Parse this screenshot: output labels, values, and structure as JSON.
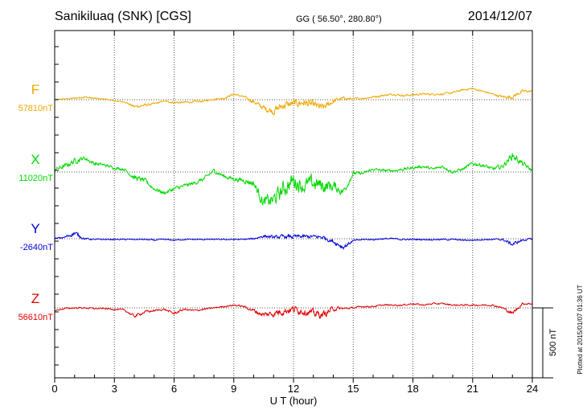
{
  "chart_data": {
    "type": "line",
    "title": "Sanikiluaq (SNK)  [CGS]",
    "coords": "GG ( 56.50°, 280.80°)",
    "date": "2014/12/07",
    "xlabel": "U T (hour)",
    "xlim": [
      0,
      24
    ],
    "xticks": [
      "0",
      "3",
      "6",
      "9",
      "12",
      "15",
      "18",
      "21",
      "24"
    ],
    "scale_label": "500 nT",
    "plotted_note": "Plotted at 2015/01/07 01:36 UT",
    "grid": true,
    "series": [
      {
        "name": "F",
        "baseline_label": "57810nT",
        "color": "#f0a800",
        "t": [
          0,
          0.5,
          1,
          1.5,
          2,
          2.5,
          3,
          3.5,
          4,
          4.5,
          5,
          5.5,
          6,
          6.5,
          7,
          7.5,
          8,
          8.5,
          9,
          9.5,
          10,
          10.5,
          11,
          11.5,
          12,
          12.5,
          13,
          13.5,
          14,
          14.5,
          15,
          15.5,
          16,
          16.5,
          17,
          17.5,
          18,
          18.5,
          19,
          19.5,
          20,
          20.5,
          21,
          21.5,
          22,
          22.5,
          23,
          23.5,
          24
        ],
        "v": [
          0,
          5,
          10,
          20,
          8,
          5,
          -10,
          -15,
          -50,
          -40,
          -30,
          -10,
          -20,
          -20,
          -15,
          -10,
          5,
          10,
          40,
          20,
          -15,
          -60,
          -80,
          -40,
          -30,
          -20,
          -40,
          -60,
          -10,
          10,
          5,
          10,
          20,
          30,
          40,
          30,
          35,
          40,
          40,
          40,
          50,
          70,
          80,
          60,
          40,
          20,
          20,
          60,
          60
        ],
        "noise": [
          5,
          5,
          10,
          10,
          10,
          5,
          5,
          5,
          15,
          15,
          10,
          5,
          15,
          10,
          10,
          10,
          10,
          10,
          10,
          10,
          20,
          30,
          40,
          45,
          45,
          40,
          45,
          40,
          25,
          15,
          10,
          10,
          10,
          10,
          10,
          10,
          10,
          10,
          10,
          10,
          10,
          10,
          10,
          10,
          10,
          15,
          20,
          15,
          10
        ]
      },
      {
        "name": "X",
        "baseline_label": "11020nT",
        "color": "#00d800",
        "t": [
          0,
          0.5,
          1,
          1.5,
          2,
          2.5,
          3,
          3.5,
          4,
          4.5,
          5,
          5.5,
          6,
          6.5,
          7,
          7.5,
          8,
          8.5,
          9,
          9.5,
          10,
          10.5,
          11,
          11.5,
          12,
          12.5,
          13,
          13.5,
          14,
          14.5,
          15,
          15.5,
          16,
          16.5,
          17,
          17.5,
          18,
          18.5,
          19,
          19.5,
          20,
          20.5,
          21,
          21.5,
          22,
          22.5,
          23,
          23.5,
          24
        ],
        "v": [
          20,
          40,
          80,
          100,
          60,
          50,
          30,
          20,
          -40,
          -60,
          -120,
          -150,
          -120,
          -100,
          -80,
          -50,
          10,
          -30,
          -50,
          -60,
          -80,
          -220,
          -200,
          -120,
          -60,
          -100,
          -80,
          -100,
          -100,
          -140,
          -10,
          -10,
          20,
          10,
          10,
          20,
          30,
          40,
          20,
          40,
          0,
          20,
          60,
          50,
          20,
          40,
          120,
          60,
          10
        ],
        "noise": [
          15,
          25,
          30,
          20,
          20,
          15,
          15,
          15,
          25,
          25,
          20,
          20,
          20,
          20,
          20,
          20,
          20,
          20,
          20,
          25,
          40,
          60,
          80,
          90,
          90,
          80,
          85,
          80,
          60,
          40,
          20,
          15,
          15,
          15,
          15,
          15,
          15,
          15,
          15,
          15,
          15,
          15,
          20,
          20,
          20,
          25,
          40,
          30,
          15
        ]
      },
      {
        "name": "Y",
        "baseline_label": "-2640nT",
        "color": "#0000d8",
        "t": [
          0,
          0.5,
          1,
          1.5,
          2,
          2.5,
          3,
          3.5,
          4,
          4.5,
          5,
          5.5,
          6,
          6.5,
          7,
          7.5,
          8,
          8.5,
          9,
          9.5,
          10,
          10.5,
          11,
          11.5,
          12,
          12.5,
          13,
          13.5,
          14,
          14.5,
          15,
          15.5,
          16,
          16.5,
          17,
          17.5,
          18,
          18.5,
          19,
          19.5,
          20,
          20.5,
          21,
          21.5,
          22,
          22.5,
          23,
          23.5,
          24
        ],
        "v": [
          0,
          10,
          40,
          0,
          -5,
          -5,
          -5,
          -5,
          -5,
          -5,
          -10,
          -5,
          -10,
          -5,
          -5,
          -5,
          -5,
          -5,
          -5,
          -5,
          0,
          20,
          10,
          15,
          15,
          15,
          15,
          10,
          -20,
          -60,
          -15,
          -5,
          -5,
          0,
          0,
          -5,
          -5,
          -5,
          -5,
          -5,
          -5,
          -10,
          -10,
          -5,
          -5,
          -5,
          -40,
          -10,
          0
        ],
        "noise": [
          8,
          10,
          25,
          10,
          6,
          6,
          6,
          6,
          6,
          6,
          8,
          6,
          6,
          6,
          6,
          6,
          6,
          6,
          6,
          6,
          10,
          15,
          15,
          20,
          20,
          20,
          18,
          20,
          20,
          25,
          10,
          8,
          8,
          8,
          8,
          8,
          8,
          8,
          8,
          8,
          8,
          8,
          8,
          8,
          8,
          10,
          20,
          12,
          8
        ]
      },
      {
        "name": "Z",
        "baseline_label": "56610nT",
        "color": "#e00000",
        "t": [
          0,
          0.5,
          1,
          1.5,
          2,
          2.5,
          3,
          3.5,
          4,
          4.5,
          5,
          5.5,
          6,
          6.5,
          7,
          7.5,
          8,
          8.5,
          9,
          9.5,
          10,
          10.5,
          11,
          11.5,
          12,
          12.5,
          13,
          13.5,
          14,
          14.5,
          15,
          15.5,
          16,
          16.5,
          17,
          17.5,
          18,
          18.5,
          19,
          19.5,
          20,
          20.5,
          21,
          21.5,
          22,
          22.5,
          23,
          23.5,
          24
        ],
        "v": [
          -20,
          -5,
          0,
          0,
          -5,
          -5,
          -10,
          -15,
          -60,
          -30,
          -20,
          -10,
          -40,
          -10,
          -20,
          -10,
          0,
          10,
          20,
          10,
          -20,
          -50,
          -40,
          -20,
          -10,
          -20,
          -40,
          -50,
          -5,
          -5,
          0,
          10,
          10,
          20,
          20,
          20,
          30,
          20,
          30,
          30,
          20,
          20,
          20,
          20,
          20,
          0,
          -40,
          30,
          30
        ],
        "noise": [
          6,
          8,
          8,
          8,
          8,
          8,
          8,
          8,
          15,
          15,
          10,
          8,
          15,
          10,
          10,
          10,
          8,
          8,
          8,
          10,
          20,
          30,
          35,
          40,
          40,
          40,
          40,
          40,
          25,
          12,
          8,
          8,
          8,
          8,
          8,
          8,
          8,
          8,
          8,
          8,
          8,
          8,
          8,
          8,
          8,
          10,
          20,
          12,
          8
        ]
      }
    ]
  }
}
